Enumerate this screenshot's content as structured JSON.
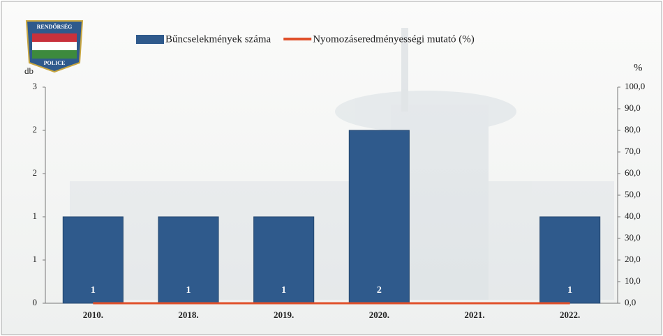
{
  "logo": {
    "top_text": "RENDŐRSÉG",
    "bottom_text": "POLICE"
  },
  "chart_data": {
    "type": "bar",
    "ylabel": "db",
    "y2label": "%",
    "categories": [
      "2010.",
      "2018.",
      "2019.",
      "2020.",
      "2021.",
      "2022."
    ],
    "series": [
      {
        "name": "Bűncselekmények száma",
        "type": "bar",
        "color": "#2f5a8c",
        "values": [
          1,
          1,
          1,
          2,
          null,
          1
        ]
      },
      {
        "name": "Nyomozáseredményességi mutató (%)",
        "type": "line",
        "axis": "y2",
        "color": "#e0502a",
        "values": [
          0,
          0,
          0,
          0,
          0,
          0
        ]
      }
    ],
    "ylim": [
      0,
      2.5
    ],
    "yticks": [
      0,
      {
        "value": 0.5,
        "label": "1"
      },
      1,
      {
        "value": 1.5,
        "label": "2"
      },
      2,
      {
        "value": 2.5,
        "label": "3"
      }
    ],
    "y2lim": [
      0,
      100
    ],
    "y2ticks": [
      {
        "value": 0,
        "label": "0,0"
      },
      {
        "value": 10,
        "label": "10,0"
      },
      {
        "value": 20,
        "label": "20,0"
      },
      {
        "value": 30,
        "label": "30,0"
      },
      {
        "value": 40,
        "label": "40,0"
      },
      {
        "value": 50,
        "label": "50,0"
      },
      {
        "value": 60,
        "label": "60,0"
      },
      {
        "value": 70,
        "label": "70,0"
      },
      {
        "value": 80,
        "label": "80,0"
      },
      {
        "value": 90,
        "label": "90,0"
      },
      {
        "value": 100,
        "label": "100,0"
      }
    ],
    "legend": "top"
  }
}
